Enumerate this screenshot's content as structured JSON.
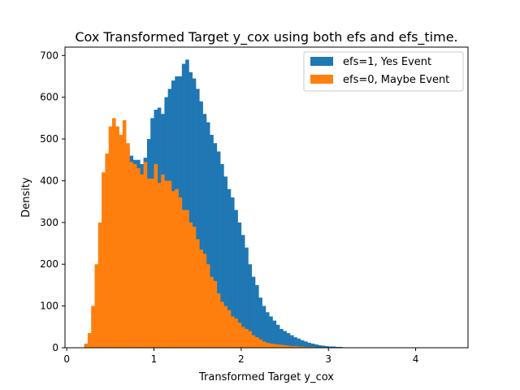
{
  "chart_data": {
    "type": "histogram",
    "title": "Cox Transformed Target y_cox using both efs and efs_time.",
    "xlabel": "Transformed Target y_cox",
    "ylabel": "Density",
    "xlim": [
      -0.02,
      4.6
    ],
    "ylim": [
      0,
      720
    ],
    "xticks": [
      0,
      1,
      2,
      3,
      4
    ],
    "yticks": [
      0,
      100,
      200,
      300,
      400,
      500,
      600,
      700
    ],
    "grid": false,
    "legend_position": "top-right",
    "series": [
      {
        "name": "efs=1, Yes Event",
        "color": "#1f77b4",
        "x_start": 0.2,
        "bin_width": 0.04,
        "values": [
          5,
          10,
          20,
          40,
          80,
          200,
          300,
          350,
          420,
          450,
          470,
          480,
          480,
          460,
          450,
          450,
          440,
          455,
          500,
          550,
          570,
          575,
          560,
          600,
          620,
          640,
          650,
          650,
          680,
          690,
          660,
          645,
          620,
          590,
          560,
          540,
          510,
          490,
          470,
          440,
          410,
          380,
          360,
          330,
          300,
          270,
          240,
          200,
          170,
          150,
          120,
          100,
          85,
          75,
          65,
          55,
          45,
          40,
          35,
          30,
          25,
          22,
          18,
          15,
          12,
          10,
          8,
          6,
          5,
          4,
          3,
          3,
          2,
          2,
          1,
          1,
          1,
          1,
          1,
          0,
          0,
          0,
          0,
          0,
          0,
          0,
          0,
          0,
          0,
          0,
          0,
          0,
          0,
          0,
          0,
          0,
          0,
          0,
          0,
          0,
          0,
          1,
          0,
          0,
          0,
          0,
          0,
          0,
          0,
          0
        ]
      },
      {
        "name": "efs=0, Maybe Event",
        "color": "#ff7f0e",
        "x_start": 0.2,
        "bin_width": 0.04,
        "values": [
          10,
          35,
          100,
          200,
          300,
          420,
          465,
          530,
          550,
          530,
          510,
          545,
          490,
          445,
          440,
          430,
          415,
          445,
          405,
          405,
          440,
          395,
          415,
          400,
          400,
          375,
          380,
          360,
          330,
          330,
          300,
          290,
          260,
          235,
          225,
          200,
          170,
          160,
          130,
          110,
          100,
          90,
          75,
          70,
          60,
          50,
          45,
          40,
          30,
          25,
          20,
          15,
          12,
          10,
          9,
          8,
          7,
          6,
          5,
          4,
          4,
          3,
          3,
          2,
          2,
          2,
          1,
          1,
          1,
          1,
          1,
          1,
          0,
          0,
          0,
          0,
          0,
          0,
          0,
          0,
          0,
          0,
          0,
          0,
          0,
          0,
          0,
          0,
          0,
          0,
          0,
          0,
          0,
          0,
          0,
          0,
          0,
          0,
          0,
          0,
          0,
          0,
          0,
          0,
          0,
          0,
          0,
          0,
          0,
          0
        ]
      }
    ]
  }
}
